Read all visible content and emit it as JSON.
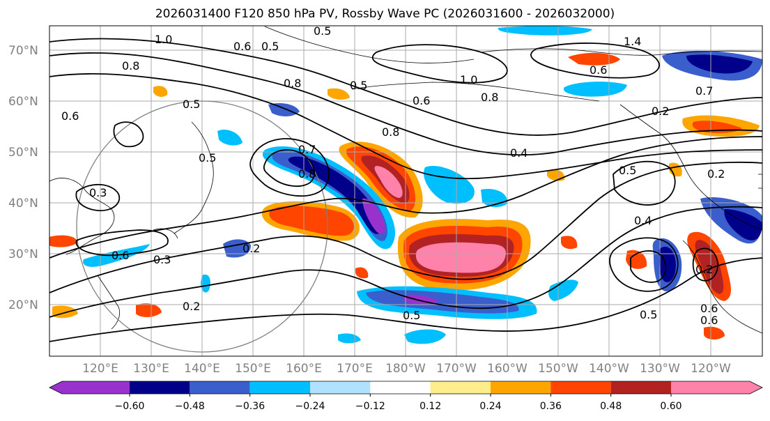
{
  "title": "2026031400 F120 850 hPa PV, Rossby Wave PC (2026031600 - 2026032000)",
  "lat_labels": [
    "70°N",
    "60°N",
    "50°N",
    "40°N",
    "30°N",
    "20°N"
  ],
  "lon_labels": [
    "120°E",
    "130°E",
    "140°E",
    "150°E",
    "160°E",
    "170°E",
    "180°W",
    "170°W",
    "160°W",
    "150°W",
    "140°W",
    "130°W",
    "120°W"
  ],
  "colorbar": {
    "ticks": [
      "−0.60",
      "−0.48",
      "−0.36",
      "−0.24",
      "−0.12",
      "0.12",
      "0.24",
      "0.36",
      "0.48",
      "0.60"
    ],
    "colors": [
      "#9932cc",
      "#00008b",
      "#3a5fcd",
      "#00bfff",
      "#b0e2ff",
      "#ffffff",
      "#ffec8b",
      "#ffa500",
      "#ff4500",
      "#b22222",
      "#ff82ab"
    ]
  },
  "contour_labels": [
    "1.0",
    "0.5",
    "0.6",
    "0.5",
    "1.4",
    "0.8",
    "0.8",
    "0.5",
    "0.6",
    "1.0",
    "0.7",
    "0.6",
    "0.5",
    "0.6",
    "0.8",
    "0.2",
    "0.8",
    "0.4",
    "0.5",
    "0.7",
    "0.8",
    "0.5",
    "0.3",
    "0.6",
    "0.3",
    "0.2",
    "0.2",
    "0.4",
    "0.5",
    "0.6",
    "0.2",
    "0.6",
    "0.5",
    "0.2"
  ]
}
